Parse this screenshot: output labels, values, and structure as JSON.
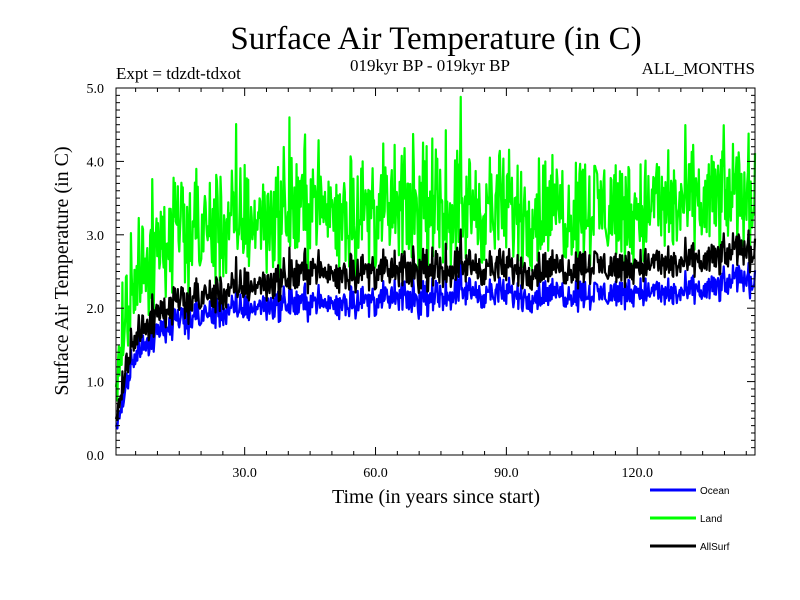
{
  "chart_data": {
    "type": "line",
    "title": "Surface Air Temperature (in C)",
    "subtitle_left": "Expt = tdzdt-tdxot",
    "subtitle_center": "019kyr BP - 019kyr BP",
    "subtitle_right": "ALL_MONTHS",
    "xlabel": "Time (in years since start)",
    "ylabel": "Surface Air Temperature (in C)",
    "xlim": [
      0.5,
      147
    ],
    "ylim": [
      0.0,
      5.0
    ],
    "xticks": [
      30,
      60,
      90,
      120
    ],
    "xtick_labels": [
      "30.0",
      "60.0",
      "90.0",
      "120.0"
    ],
    "yticks": [
      0,
      1,
      2,
      3,
      4,
      5
    ],
    "ytick_labels": [
      "0.0",
      "1.0",
      "2.0",
      "3.0",
      "4.0",
      "5.0"
    ],
    "legend_position": "bottom-right",
    "series": [
      {
        "name": "Ocean",
        "color": "#0000ff",
        "x": [
          0.5,
          1,
          2,
          3,
          4,
          5,
          6,
          8,
          10,
          12,
          15,
          18,
          20,
          25,
          30,
          35,
          40,
          45,
          50,
          55,
          60,
          65,
          70,
          75,
          80,
          85,
          90,
          95,
          100,
          105,
          110,
          115,
          120,
          125,
          130,
          135,
          140,
          142,
          144,
          145,
          147
        ],
        "values": [
          0.35,
          0.5,
          0.7,
          1.0,
          1.25,
          1.4,
          1.5,
          1.6,
          1.7,
          1.75,
          1.8,
          1.85,
          1.9,
          1.95,
          2.0,
          2.05,
          2.05,
          2.1,
          2.05,
          2.1,
          2.1,
          2.15,
          2.1,
          2.15,
          2.25,
          2.2,
          2.2,
          2.15,
          2.2,
          2.2,
          2.2,
          2.2,
          2.25,
          2.2,
          2.2,
          2.25,
          2.3,
          2.4,
          2.45,
          2.4,
          2.35
        ]
      },
      {
        "name": "Land",
        "color": "#00ff00",
        "x": [
          0.5,
          1,
          2,
          3,
          4,
          5,
          6,
          8,
          10,
          12,
          15,
          18,
          20,
          25,
          30,
          35,
          40,
          45,
          50,
          55,
          60,
          65,
          70,
          75,
          80,
          85,
          90,
          95,
          100,
          105,
          110,
          115,
          120,
          125,
          130,
          135,
          140,
          142,
          144,
          145,
          147
        ],
        "values": [
          0.8,
          1.2,
          1.6,
          2.0,
          2.3,
          2.55,
          2.7,
          2.8,
          2.9,
          2.95,
          3.0,
          3.0,
          3.05,
          3.1,
          3.2,
          3.25,
          3.3,
          3.5,
          3.3,
          3.3,
          3.3,
          3.35,
          3.3,
          3.3,
          3.4,
          3.35,
          3.35,
          3.3,
          3.35,
          3.35,
          3.4,
          3.35,
          3.35,
          3.4,
          3.4,
          3.45,
          3.5,
          3.55,
          3.6,
          3.55,
          3.5
        ]
      },
      {
        "name": "AllSurf",
        "color": "#000000",
        "x": [
          0.5,
          1,
          2,
          3,
          4,
          5,
          6,
          8,
          10,
          12,
          15,
          18,
          20,
          25,
          30,
          35,
          40,
          45,
          50,
          55,
          60,
          65,
          70,
          75,
          80,
          85,
          90,
          95,
          100,
          105,
          110,
          115,
          120,
          125,
          130,
          135,
          140,
          142,
          144,
          145,
          147
        ],
        "values": [
          0.45,
          0.65,
          0.9,
          1.25,
          1.5,
          1.65,
          1.75,
          1.85,
          1.95,
          2.0,
          2.05,
          2.1,
          2.15,
          2.2,
          2.3,
          2.35,
          2.4,
          2.55,
          2.45,
          2.5,
          2.5,
          2.5,
          2.5,
          2.5,
          2.6,
          2.55,
          2.55,
          2.5,
          2.55,
          2.55,
          2.6,
          2.55,
          2.6,
          2.6,
          2.6,
          2.65,
          2.7,
          2.8,
          2.85,
          2.8,
          2.75
        ]
      }
    ]
  }
}
